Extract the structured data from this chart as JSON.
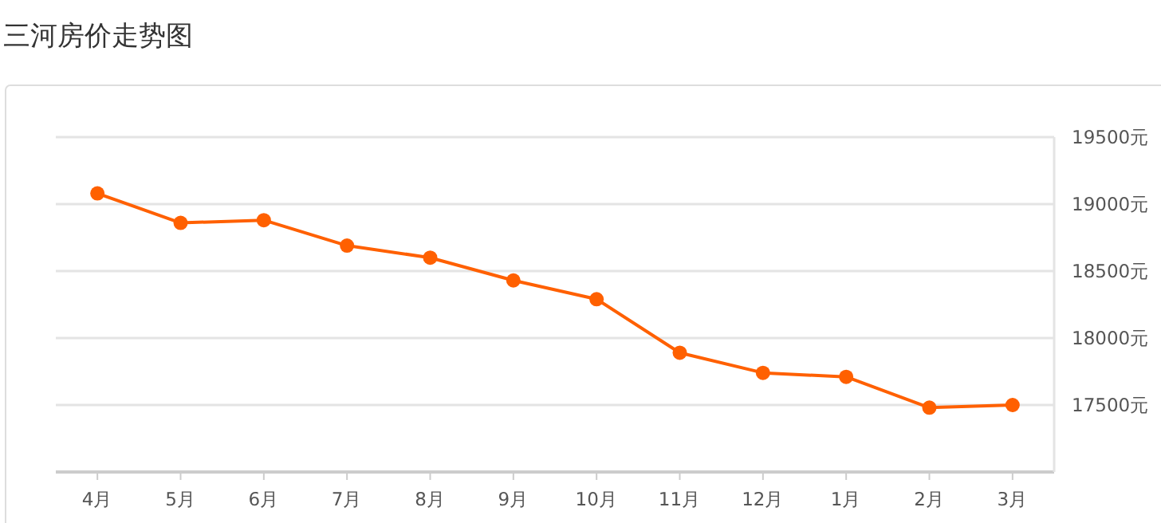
{
  "chart_data": {
    "type": "line",
    "title": "三河房价走势图",
    "categories": [
      "4月",
      "5月",
      "6月",
      "7月",
      "8月",
      "9月",
      "10月",
      "11月",
      "12月",
      "1月",
      "2月",
      "3月"
    ],
    "values": [
      19080,
      18860,
      18880,
      18690,
      18600,
      18430,
      18290,
      17890,
      17740,
      17710,
      17480,
      17500
    ],
    "color": "#ff6000",
    "marker": "circle",
    "grid": "y",
    "ylim": [
      17000,
      19500
    ],
    "yticks": [
      {
        "value": 17500,
        "label": "17500元"
      },
      {
        "value": 18000,
        "label": "18000元"
      },
      {
        "value": 18500,
        "label": "18500元"
      },
      {
        "value": 19000,
        "label": "19000元"
      },
      {
        "value": 19500,
        "label": "19500元"
      }
    ]
  }
}
